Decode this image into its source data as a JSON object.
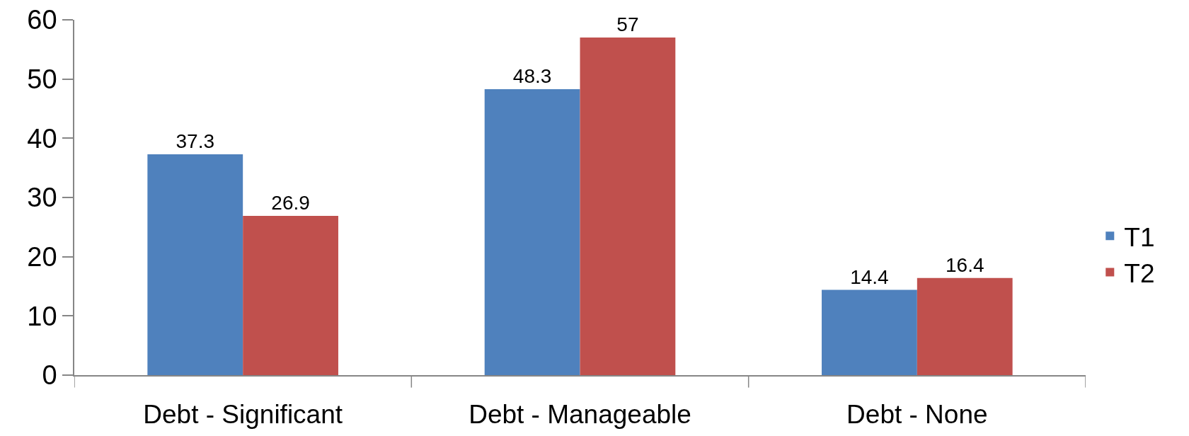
{
  "chart_data": {
    "type": "bar",
    "categories": [
      "Debt - Significant",
      "Debt - Manageable",
      "Debt - None"
    ],
    "series": [
      {
        "name": "T1",
        "color": "#4f81bd",
        "values": [
          37.3,
          48.3,
          14.4
        ]
      },
      {
        "name": "T2",
        "color": "#c0504d",
        "values": [
          26.9,
          57,
          16.4
        ]
      }
    ],
    "ylim": [
      0,
      60
    ],
    "yticks": [
      0,
      10,
      20,
      30,
      40,
      50,
      60
    ],
    "data_labels": true,
    "legend": "right"
  }
}
